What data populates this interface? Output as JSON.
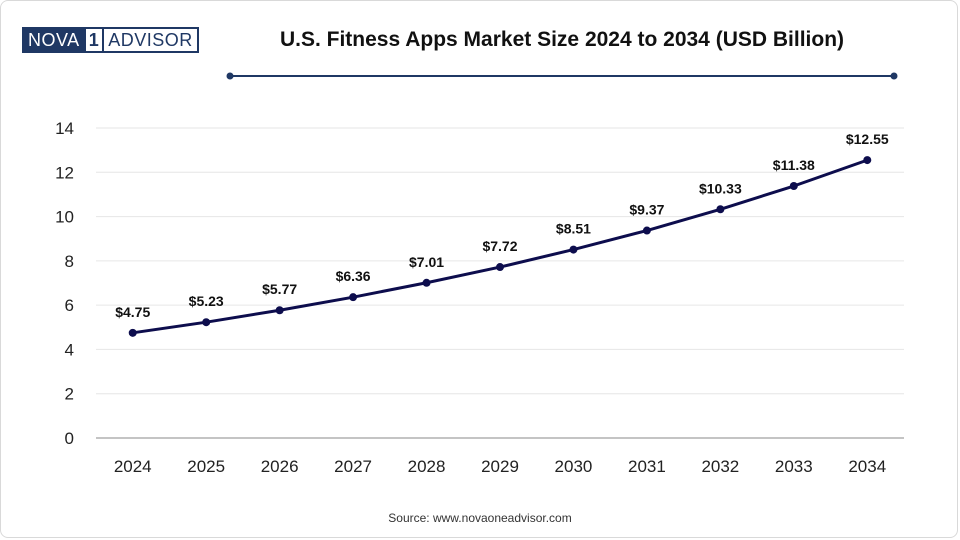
{
  "logo": {
    "left": "NOVA",
    "mid": "1",
    "right": "ADVISOR"
  },
  "source": "Source: www.novaoneadvisor.com",
  "colors": {
    "line": "#0d0d4d",
    "accent": "#1f3864",
    "grid": "#e6e6e6",
    "axis": "#b0b0b0"
  },
  "chart_data": {
    "type": "line",
    "title": "U.S. Fitness Apps Market Size 2024 to 2034 (USD Billion)",
    "xlabel": "",
    "ylabel": "",
    "categories": [
      "2024",
      "2025",
      "2026",
      "2027",
      "2028",
      "2029",
      "2030",
      "2031",
      "2032",
      "2033",
      "2034"
    ],
    "values": [
      4.75,
      5.23,
      5.77,
      6.36,
      7.01,
      7.72,
      8.51,
      9.37,
      10.33,
      11.38,
      12.55
    ],
    "data_labels": [
      "$4.75",
      "$5.23",
      "$5.77",
      "$6.36",
      "$7.01",
      "$7.72",
      "$8.51",
      "$9.37",
      "$10.33",
      "$11.38",
      "$12.55"
    ],
    "y_ticks": [
      "0",
      "2",
      "4",
      "6",
      "8",
      "10",
      "12",
      "14"
    ],
    "ylim": [
      0,
      14
    ],
    "grid": true,
    "legend": "none"
  }
}
